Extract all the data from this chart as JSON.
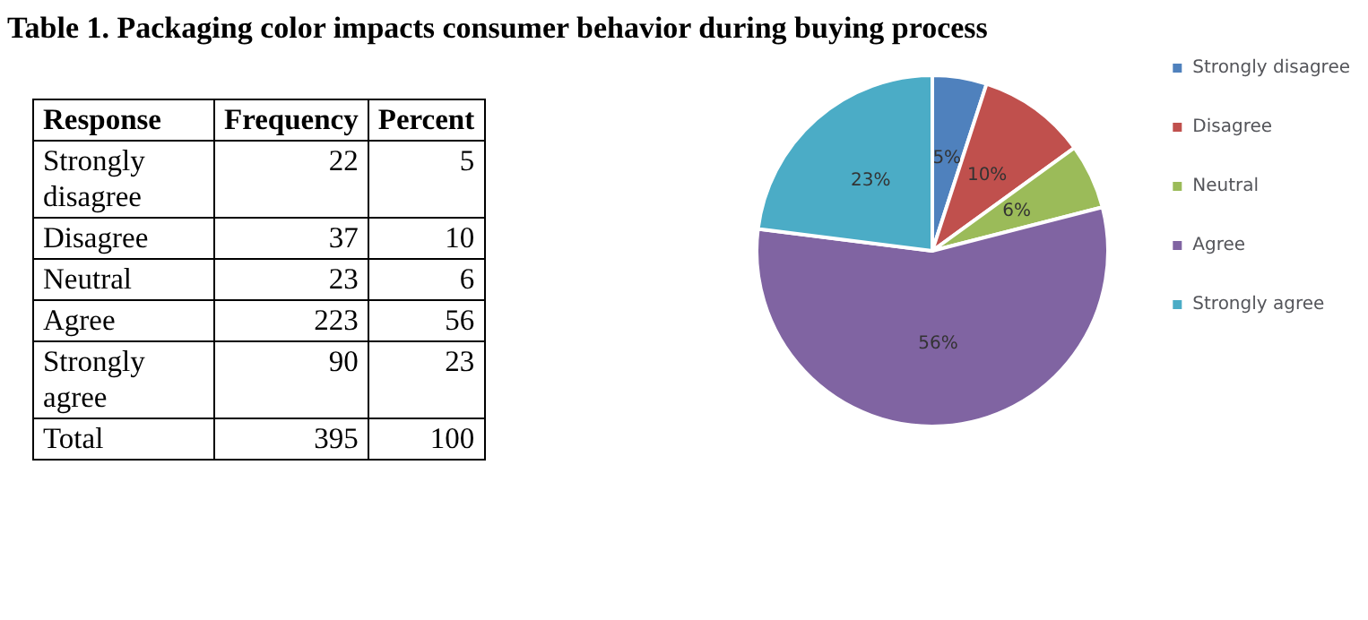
{
  "chart_data": [
    {
      "type": "other",
      "title": "Table 1. Packaging color impacts consumer behavior during buying process",
      "xlabel": "Response",
      "categories": [
        "Strongly disagree",
        "Disagree",
        "Neutral",
        "Agree",
        "Strongly agree",
        "Total"
      ],
      "series": [
        {
          "name": "Frequency",
          "values": [
            22,
            37,
            23,
            223,
            90,
            395
          ]
        },
        {
          "name": "Percent",
          "values": [
            5,
            10,
            6,
            56,
            23,
            100
          ]
        }
      ],
      "data_labels": true
    },
    {
      "type": "pie",
      "categories": [
        "Strongly disagree",
        "Disagree",
        "Neutral",
        "Agree",
        "Strongly agree"
      ],
      "values": [
        5,
        10,
        6,
        56,
        23
      ],
      "value_labels": [
        "5%",
        "10%",
        "6%",
        "56%",
        "23%"
      ],
      "colors": [
        "#4f81bd",
        "#c0504d",
        "#9bbb59",
        "#8064a2",
        "#4bacc6"
      ],
      "legend": "right"
    }
  ]
}
